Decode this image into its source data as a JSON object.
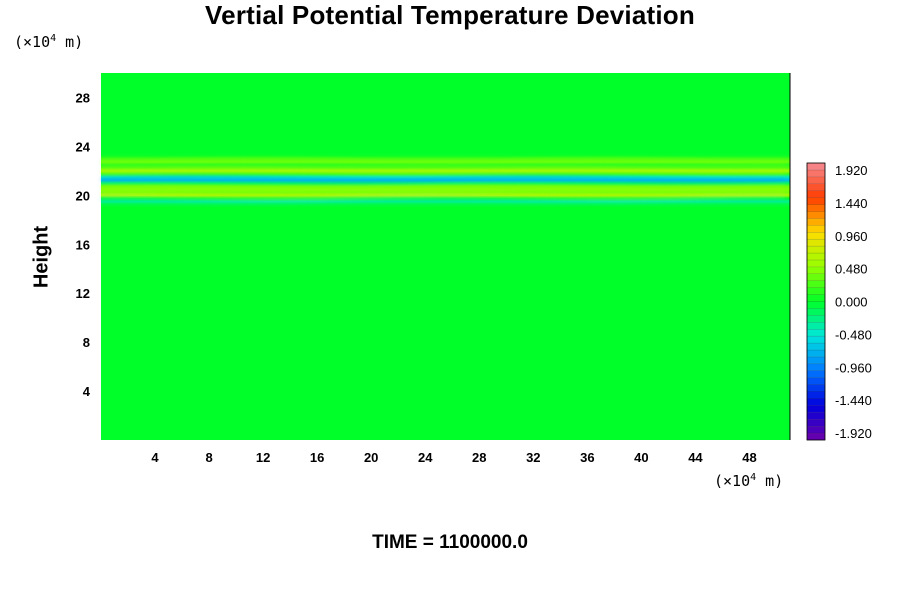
{
  "chart_data": {
    "type": "heatmap",
    "title": "Vertial Potential Temperature Deviation",
    "ylabel": "Height",
    "y_unit_prefix": "(×10",
    "y_unit_exp": "4",
    "y_unit_suffix": " m)",
    "x_unit_prefix": "(×10",
    "x_unit_exp": "4",
    "x_unit_suffix": " m)",
    "xlim": [
      0,
      51
    ],
    "ylim": [
      0,
      30
    ],
    "xticks": [
      4,
      8,
      12,
      16,
      20,
      24,
      28,
      32,
      36,
      40,
      44,
      48
    ],
    "yticks": [
      4,
      8,
      12,
      16,
      20,
      24,
      28
    ],
    "colorbar": {
      "labels": [
        "1.920",
        "1.440",
        "0.960",
        "0.480",
        "0.000",
        "-0.480",
        "-0.960",
        "-1.440",
        "-1.920"
      ],
      "min": -1.92,
      "max": 1.92
    },
    "field_description_values": {
      "background": 0.0,
      "bands": [
        {
          "y": 22.8,
          "amplitude": 0.35
        },
        {
          "y": 22.0,
          "amplitude": 0.55
        },
        {
          "y": 21.3,
          "amplitude": -0.7
        },
        {
          "y": 20.6,
          "amplitude": 0.45
        },
        {
          "y": 20.0,
          "amplitude": 0.6
        },
        {
          "y": 19.6,
          "amplitude": -0.35
        }
      ]
    }
  },
  "footer": {
    "time_label": "TIME = 1100000.0"
  }
}
